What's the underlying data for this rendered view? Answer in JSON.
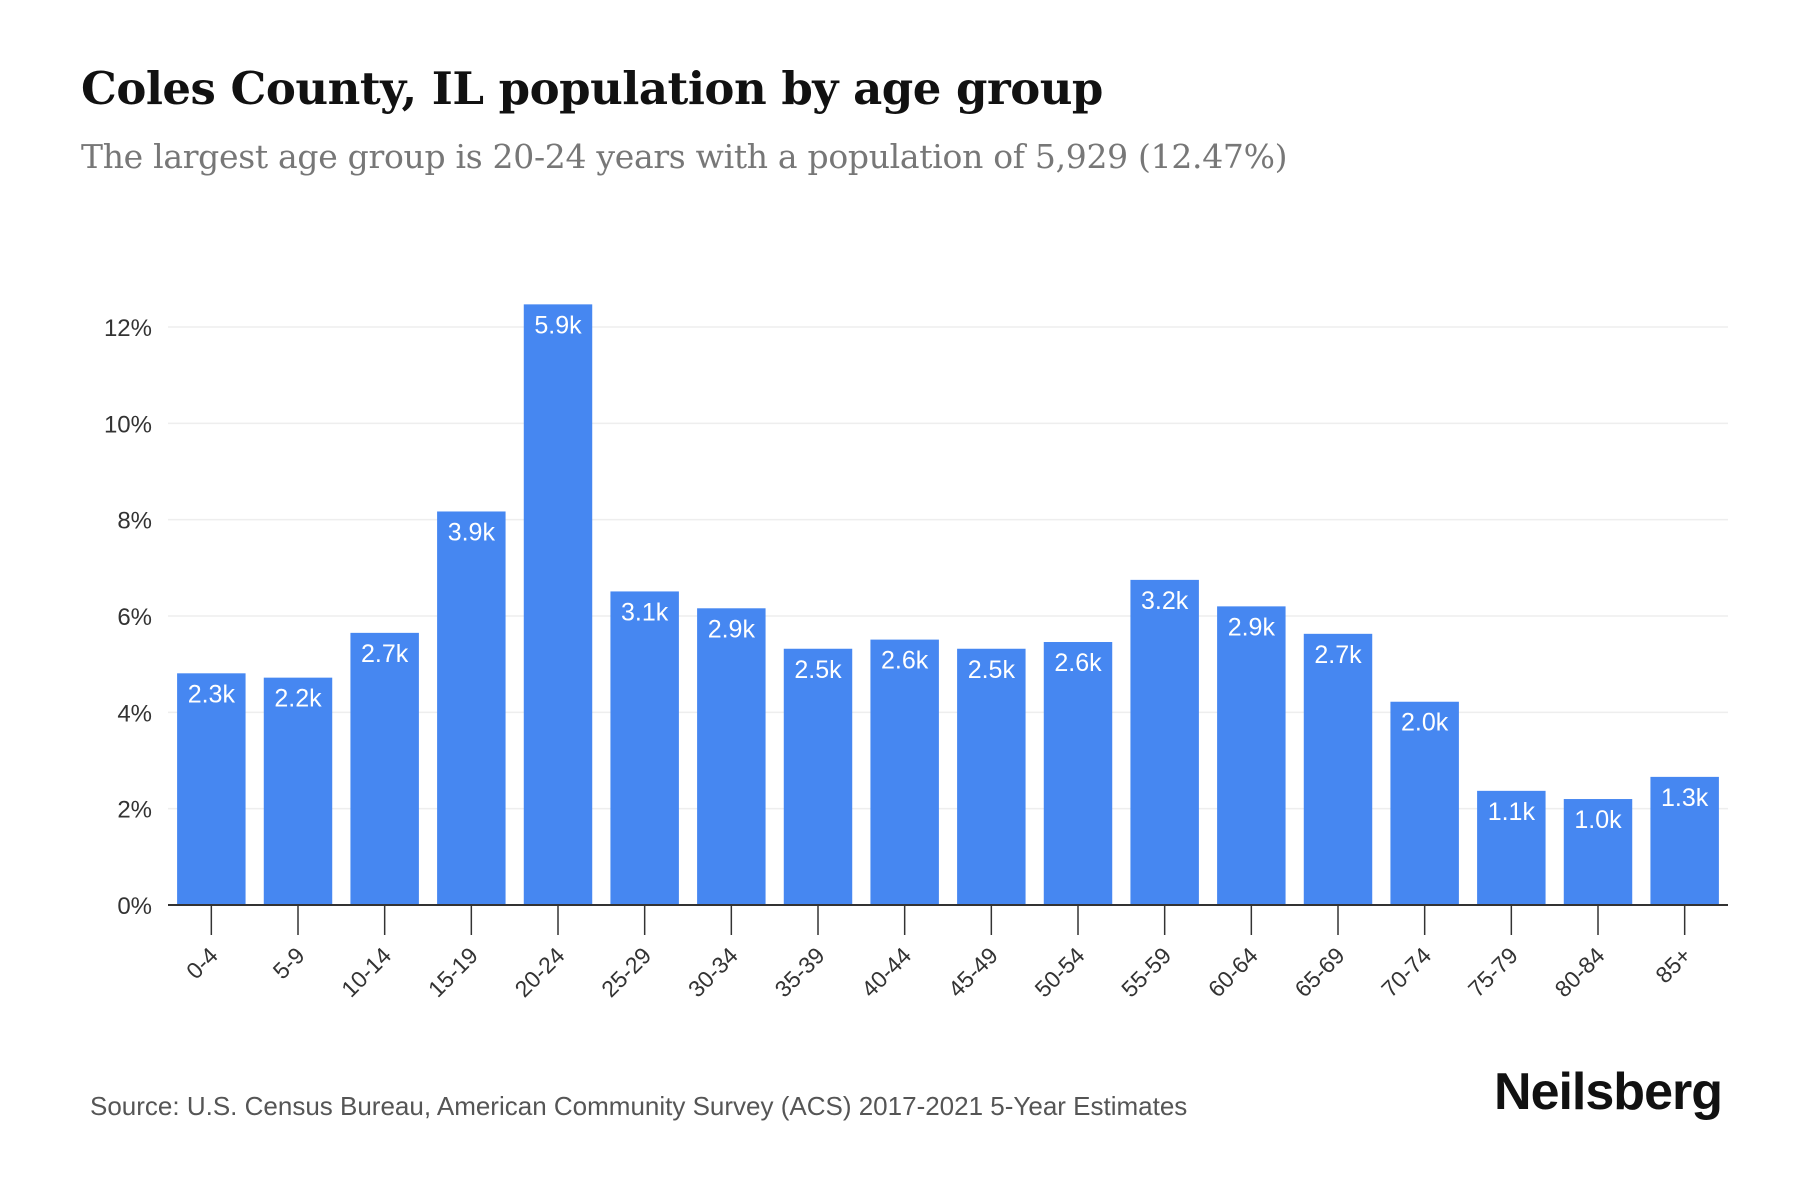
{
  "header": {
    "title": "Coles County, IL population by age group",
    "subtitle": "The largest age group is 20-24 years with a population of 5,929 (12.47%)"
  },
  "footer": {
    "source": "Source: U.S. Census Bureau, American Community Survey (ACS) 2017-2021 5-Year Estimates",
    "brand": "Neilsberg"
  },
  "colors": {
    "bar": "#4687f1",
    "grid": "#eeeeee",
    "axis": "#333333",
    "label": "#ffffff",
    "tick_text": "#333333"
  },
  "chart_data": {
    "type": "bar",
    "title": "Coles County, IL population by age group",
    "subtitle": "The largest age group is 20-24 years with a population of 5,929 (12.47%)",
    "xlabel": "",
    "ylabel": "",
    "ylim": [
      0,
      12.9
    ],
    "yticks": [
      0,
      2,
      4,
      6,
      8,
      10,
      12
    ],
    "ytick_labels": [
      "0%",
      "2%",
      "4%",
      "6%",
      "8%",
      "10%",
      "12%"
    ],
    "grid": true,
    "legend": "none",
    "categories": [
      "0-4",
      "5-9",
      "10-14",
      "15-19",
      "20-24",
      "25-29",
      "30-34",
      "35-39",
      "40-44",
      "45-49",
      "50-54",
      "55-59",
      "60-64",
      "65-69",
      "70-74",
      "75-79",
      "80-84",
      "85+"
    ],
    "values": [
      4.81,
      4.72,
      5.65,
      8.17,
      12.47,
      6.51,
      6.16,
      5.32,
      5.51,
      5.32,
      5.46,
      6.75,
      6.2,
      5.63,
      4.22,
      2.37,
      2.2,
      2.66
    ],
    "data_labels": [
      "2.3k",
      "2.2k",
      "2.7k",
      "3.9k",
      "5.9k",
      "3.1k",
      "2.9k",
      "2.5k",
      "2.6k",
      "2.5k",
      "2.6k",
      "3.2k",
      "2.9k",
      "2.7k",
      "2.0k",
      "1.1k",
      "1.0k",
      "1.3k"
    ],
    "unit": "percent of population"
  }
}
